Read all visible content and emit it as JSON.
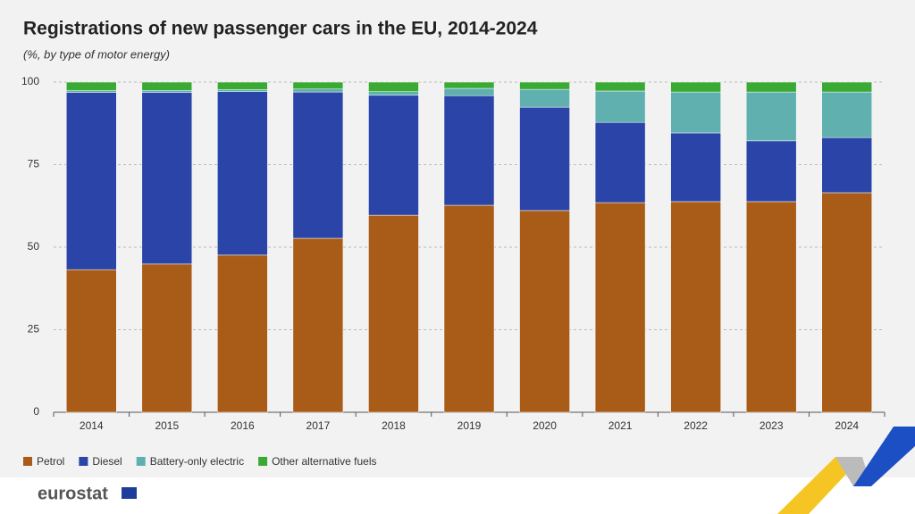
{
  "chart_data": {
    "type": "stacked_bar",
    "title": "Registrations of new passenger cars in the EU, 2014-2024",
    "subtitle": "(%, by type of motor energy)",
    "categories": [
      "2014",
      "2015",
      "2016",
      "2017",
      "2018",
      "2019",
      "2020",
      "2021",
      "2022",
      "2023",
      "2024"
    ],
    "series": [
      {
        "name": "Petrol",
        "color": "#a85c17",
        "values": [
          43.2,
          44.9,
          47.6,
          52.7,
          59.7,
          62.7,
          61.1,
          63.5,
          63.8,
          63.8,
          66.5
        ]
      },
      {
        "name": "Diesel",
        "color": "#2a44a8",
        "values": [
          53.7,
          52.0,
          49.5,
          44.3,
          36.3,
          33.2,
          31.3,
          24.3,
          20.8,
          18.4,
          16.7
        ]
      },
      {
        "name": "Battery-only electric",
        "color": "#5fb0ae",
        "values": [
          0.5,
          0.6,
          0.6,
          0.9,
          1.1,
          2.2,
          5.4,
          9.5,
          12.4,
          14.8,
          13.8
        ]
      },
      {
        "name": "Other alternative fuels",
        "color": "#3aaa35",
        "values": [
          2.6,
          2.5,
          2.3,
          2.1,
          2.9,
          1.9,
          2.2,
          2.7,
          3.0,
          3.0,
          3.0
        ]
      }
    ],
    "ylim": [
      0,
      100
    ],
    "yticks": [
      0,
      25,
      50,
      75,
      100
    ],
    "grid": true,
    "legend": "bottom"
  },
  "footer": {
    "logo": "eurostat"
  }
}
